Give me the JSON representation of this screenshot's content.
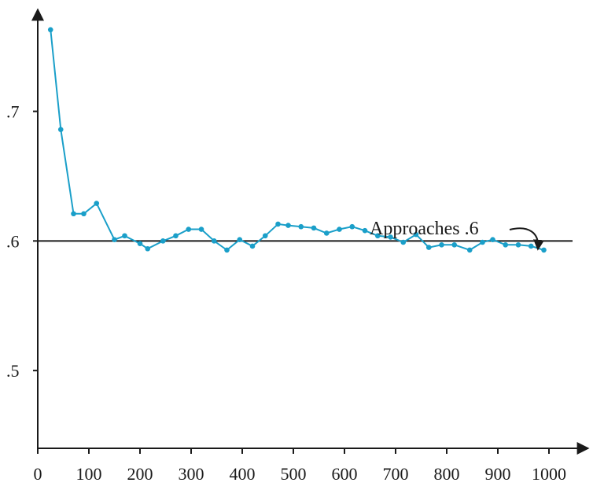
{
  "chart_data": {
    "type": "line",
    "title": "",
    "xlabel": "",
    "ylabel": "",
    "xlim": [
      0,
      1050
    ],
    "ylim": [
      0.44,
      0.775
    ],
    "x_ticks": [
      {
        "value": 0,
        "label": "0"
      },
      {
        "value": 100,
        "label": "100"
      },
      {
        "value": 200,
        "label": "200"
      },
      {
        "value": 300,
        "label": "300"
      },
      {
        "value": 400,
        "label": "400"
      },
      {
        "value": 500,
        "label": "500"
      },
      {
        "value": 600,
        "label": "600"
      },
      {
        "value": 700,
        "label": "700"
      },
      {
        "value": 800,
        "label": "800"
      },
      {
        "value": 900,
        "label": "900"
      },
      {
        "value": 1000,
        "label": "1000"
      }
    ],
    "y_ticks": [
      {
        "value": 0.7,
        "label": ".7"
      },
      {
        "value": 0.6,
        "label": ".6"
      },
      {
        "value": 0.5,
        "label": ".5"
      }
    ],
    "reference_line": {
      "y": 0.6
    },
    "annotation": {
      "text": "Approaches .6"
    },
    "series": [
      {
        "color": "#1a9fc9",
        "points": [
          {
            "x": 25,
            "y": 0.763
          },
          {
            "x": 45,
            "y": 0.686
          },
          {
            "x": 70,
            "y": 0.621
          },
          {
            "x": 90,
            "y": 0.621
          },
          {
            "x": 115,
            "y": 0.629
          },
          {
            "x": 150,
            "y": 0.601
          },
          {
            "x": 170,
            "y": 0.604
          },
          {
            "x": 200,
            "y": 0.598
          },
          {
            "x": 215,
            "y": 0.594
          },
          {
            "x": 245,
            "y": 0.6
          },
          {
            "x": 270,
            "y": 0.604
          },
          {
            "x": 295,
            "y": 0.609
          },
          {
            "x": 320,
            "y": 0.609
          },
          {
            "x": 345,
            "y": 0.6
          },
          {
            "x": 370,
            "y": 0.593
          },
          {
            "x": 395,
            "y": 0.601
          },
          {
            "x": 420,
            "y": 0.596
          },
          {
            "x": 445,
            "y": 0.604
          },
          {
            "x": 470,
            "y": 0.613
          },
          {
            "x": 490,
            "y": 0.612
          },
          {
            "x": 515,
            "y": 0.611
          },
          {
            "x": 540,
            "y": 0.61
          },
          {
            "x": 565,
            "y": 0.606
          },
          {
            "x": 590,
            "y": 0.609
          },
          {
            "x": 615,
            "y": 0.611
          },
          {
            "x": 640,
            "y": 0.608
          },
          {
            "x": 665,
            "y": 0.604
          },
          {
            "x": 690,
            "y": 0.603
          },
          {
            "x": 715,
            "y": 0.599
          },
          {
            "x": 740,
            "y": 0.605
          },
          {
            "x": 765,
            "y": 0.595
          },
          {
            "x": 790,
            "y": 0.597
          },
          {
            "x": 815,
            "y": 0.597
          },
          {
            "x": 845,
            "y": 0.593
          },
          {
            "x": 870,
            "y": 0.599
          },
          {
            "x": 890,
            "y": 0.601
          },
          {
            "x": 915,
            "y": 0.597
          },
          {
            "x": 940,
            "y": 0.597
          },
          {
            "x": 965,
            "y": 0.596
          },
          {
            "x": 990,
            "y": 0.593
          }
        ]
      }
    ]
  }
}
